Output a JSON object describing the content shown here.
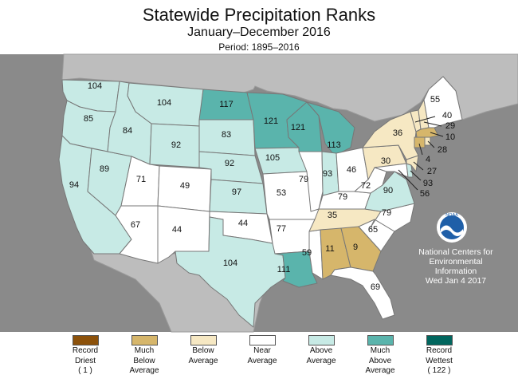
{
  "title": "Statewide Precipitation Ranks",
  "subtitle": "January–December 2016",
  "period": "Period: 1895–2016",
  "credit": {
    "logo_text": "NOAA",
    "line1": "National Centers for",
    "line2": "Environmental",
    "line3": "Information",
    "date": "Wed Jan  4 2017"
  },
  "colors": {
    "ocean": "#8a8a8a",
    "land": "#bdbdbd",
    "record_driest": "#8c510a",
    "much_below": "#d6b66b",
    "below": "#f6e8c3",
    "near": "#ffffff",
    "above": "#c7eae5",
    "much_above": "#5ab4ac",
    "record_wettest": "#01665e"
  },
  "legend": [
    {
      "lines": [
        "Record",
        "Driest",
        "( 1 )"
      ],
      "color": "#8c510a"
    },
    {
      "lines": [
        "Much",
        "Below",
        "Average"
      ],
      "color": "#d6b66b"
    },
    {
      "lines": [
        "Below",
        "Average"
      ],
      "color": "#f6e8c3"
    },
    {
      "lines": [
        "Near",
        "Average"
      ],
      "color": "#ffffff"
    },
    {
      "lines": [
        "Above",
        "Average"
      ],
      "color": "#c7eae5"
    },
    {
      "lines": [
        "Much",
        "Above",
        "Average"
      ],
      "color": "#5ab4ac"
    },
    {
      "lines": [
        "Record",
        "Wettest",
        "( 122 )"
      ],
      "color": "#01665e"
    }
  ],
  "states": {
    "WA": {
      "rank": "104",
      "category": "above"
    },
    "OR": {
      "rank": "85",
      "category": "above"
    },
    "CA": {
      "rank": "94",
      "category": "above"
    },
    "NV": {
      "rank": "89",
      "category": "above"
    },
    "ID": {
      "rank": "84",
      "category": "above"
    },
    "MT": {
      "rank": "104",
      "category": "above"
    },
    "WY": {
      "rank": "92",
      "category": "above"
    },
    "UT": {
      "rank": "71",
      "category": "near"
    },
    "CO": {
      "rank": "49",
      "category": "near"
    },
    "AZ": {
      "rank": "67",
      "category": "near"
    },
    "NM": {
      "rank": "44",
      "category": "near"
    },
    "ND": {
      "rank": "117",
      "category": "much_above"
    },
    "SD": {
      "rank": "83",
      "category": "above"
    },
    "NE": {
      "rank": "92",
      "category": "above"
    },
    "KS": {
      "rank": "97",
      "category": "above"
    },
    "OK": {
      "rank": "44",
      "category": "near"
    },
    "TX": {
      "rank": "104",
      "category": "above"
    },
    "MN": {
      "rank": "121",
      "category": "much_above"
    },
    "IA": {
      "rank": "105",
      "category": "above"
    },
    "MO": {
      "rank": "53",
      "category": "near"
    },
    "AR": {
      "rank": "77",
      "category": "near"
    },
    "LA": {
      "rank": "111",
      "category": "much_above"
    },
    "WI": {
      "rank": "121",
      "category": "much_above"
    },
    "IL": {
      "rank": "79",
      "category": "near"
    },
    "MS": {
      "rank": "59",
      "category": "near"
    },
    "MI": {
      "rank": "113",
      "category": "much_above"
    },
    "IN": {
      "rank": "93",
      "category": "above"
    },
    "OH": {
      "rank": "46",
      "category": "near"
    },
    "KY": {
      "rank": "79",
      "category": "near"
    },
    "TN": {
      "rank": "35",
      "category": "below"
    },
    "AL": {
      "rank": "11",
      "category": "much_below"
    },
    "GA": {
      "rank": "9",
      "category": "much_below"
    },
    "FL": {
      "rank": "69",
      "category": "near"
    },
    "SC": {
      "rank": "65",
      "category": "near"
    },
    "NC": {
      "rank": "79",
      "category": "near"
    },
    "VA": {
      "rank": "90",
      "category": "above"
    },
    "WV": {
      "rank": "72",
      "category": "near"
    },
    "PA": {
      "rank": "30",
      "category": "below"
    },
    "NY": {
      "rank": "36",
      "category": "below"
    },
    "ME": {
      "rank": "55",
      "category": "near"
    },
    "VT": {
      "rank": "40",
      "category": "below"
    },
    "NH": {
      "rank": "29",
      "category": "below"
    },
    "MA": {
      "rank": "10",
      "category": "much_below"
    },
    "RI": {
      "rank": "28",
      "category": "below"
    },
    "CT": {
      "rank": "4",
      "category": "much_below"
    },
    "NJ": {
      "rank": "27",
      "category": "below"
    },
    "DE": {
      "rank": "93",
      "category": "above"
    },
    "MD": {
      "rank": "56",
      "category": "near"
    }
  }
}
